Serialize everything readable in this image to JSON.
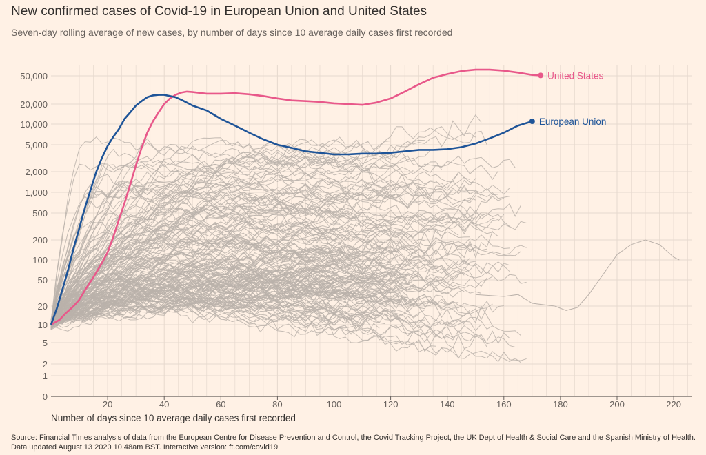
{
  "colors": {
    "background": "#fff1e5",
    "grid": "#e6d9ce",
    "baseline": "#66605c",
    "other_countries": "#bab1aa",
    "united_states": "#e8588a",
    "european_union": "#1e5498"
  },
  "chart_data": {
    "type": "line",
    "title": "New confirmed cases of Covid-19 in European Union and United States",
    "subtitle": "Seven-day rolling average of new cases, by number of days since 10 average daily cases first recorded",
    "xlabel": "Number of days since 10 average daily cases first recorded",
    "ylabel": "",
    "xlim": [
      0,
      230
    ],
    "y_scale": "log (0 shown at baseline)",
    "ylim": [
      0,
      80000
    ],
    "x_ticks": [
      20,
      40,
      60,
      80,
      100,
      120,
      140,
      160,
      180,
      200,
      220
    ],
    "y_ticks": [
      {
        "value": 50000,
        "label": "50,000"
      },
      {
        "value": 20000,
        "label": "20,000"
      },
      {
        "value": 10000,
        "label": "10,000"
      },
      {
        "value": 5000,
        "label": "5,000"
      },
      {
        "value": 2000,
        "label": "2,000"
      },
      {
        "value": 1000,
        "label": "1,000"
      },
      {
        "value": 500,
        "label": "500"
      },
      {
        "value": 200,
        "label": "200"
      },
      {
        "value": 100,
        "label": "100"
      },
      {
        "value": 50,
        "label": "50"
      },
      {
        "value": 20,
        "label": "20"
      },
      {
        "value": 10,
        "label": "10"
      },
      {
        "value": 5,
        "label": "5"
      },
      {
        "value": 2,
        "label": "2"
      },
      {
        "value": 1,
        "label": "1"
      },
      {
        "value": 0,
        "label": "0"
      }
    ],
    "series": [
      {
        "name": "United States",
        "highlight": true,
        "points": [
          [
            0,
            10
          ],
          [
            3,
            12
          ],
          [
            5,
            15
          ],
          [
            8,
            20
          ],
          [
            10,
            25
          ],
          [
            12,
            35
          ],
          [
            15,
            55
          ],
          [
            18,
            90
          ],
          [
            20,
            130
          ],
          [
            22,
            220
          ],
          [
            24,
            400
          ],
          [
            26,
            700
          ],
          [
            28,
            1300
          ],
          [
            30,
            2500
          ],
          [
            32,
            4500
          ],
          [
            34,
            7500
          ],
          [
            36,
            11000
          ],
          [
            38,
            15000
          ],
          [
            40,
            20000
          ],
          [
            42,
            24000
          ],
          [
            44,
            27000
          ],
          [
            46,
            29000
          ],
          [
            48,
            30000
          ],
          [
            50,
            29500
          ],
          [
            55,
            28000
          ],
          [
            60,
            28000
          ],
          [
            65,
            28500
          ],
          [
            70,
            27500
          ],
          [
            75,
            26000
          ],
          [
            80,
            24000
          ],
          [
            85,
            22500
          ],
          [
            90,
            22000
          ],
          [
            95,
            21500
          ],
          [
            100,
            20500
          ],
          [
            105,
            20000
          ],
          [
            110,
            19500
          ],
          [
            115,
            21000
          ],
          [
            120,
            24000
          ],
          [
            125,
            30000
          ],
          [
            130,
            38000
          ],
          [
            135,
            47000
          ],
          [
            140,
            54000
          ],
          [
            145,
            62000
          ],
          [
            150,
            66000
          ],
          [
            155,
            66000
          ],
          [
            160,
            63000
          ],
          [
            165,
            58000
          ],
          [
            170,
            52000
          ],
          [
            173,
            51000
          ]
        ]
      },
      {
        "name": "European Union",
        "highlight": true,
        "points": [
          [
            0,
            10
          ],
          [
            2,
            18
          ],
          [
            4,
            35
          ],
          [
            6,
            70
          ],
          [
            8,
            150
          ],
          [
            10,
            300
          ],
          [
            12,
            600
          ],
          [
            14,
            1100
          ],
          [
            16,
            2000
          ],
          [
            18,
            3200
          ],
          [
            20,
            4800
          ],
          [
            22,
            6500
          ],
          [
            24,
            8500
          ],
          [
            26,
            12000
          ],
          [
            28,
            15000
          ],
          [
            30,
            19000
          ],
          [
            32,
            22000
          ],
          [
            34,
            25000
          ],
          [
            36,
            26500
          ],
          [
            38,
            27000
          ],
          [
            40,
            27000
          ],
          [
            42,
            26000
          ],
          [
            44,
            25000
          ],
          [
            46,
            23000
          ],
          [
            48,
            21000
          ],
          [
            50,
            19000
          ],
          [
            55,
            16000
          ],
          [
            60,
            12000
          ],
          [
            65,
            9500
          ],
          [
            70,
            7500
          ],
          [
            75,
            6000
          ],
          [
            80,
            5000
          ],
          [
            85,
            4500
          ],
          [
            90,
            4000
          ],
          [
            95,
            3800
          ],
          [
            100,
            3600
          ],
          [
            105,
            3600
          ],
          [
            110,
            3700
          ],
          [
            115,
            3700
          ],
          [
            120,
            3800
          ],
          [
            125,
            4000
          ],
          [
            130,
            4200
          ],
          [
            135,
            4200
          ],
          [
            140,
            4300
          ],
          [
            145,
            4600
          ],
          [
            150,
            5200
          ],
          [
            155,
            6200
          ],
          [
            160,
            7500
          ],
          [
            165,
            9500
          ],
          [
            170,
            11000
          ]
        ]
      }
    ],
    "annotations": [
      {
        "text": "United States",
        "series": "United States"
      },
      {
        "text": "European Union",
        "series": "European Union"
      }
    ],
    "background_series_note": "About 200 other countries drawn as thin grey lines"
  },
  "source": {
    "line1": "Source: Financial Times analysis of data from the European Centre for Disease Prevention and Control, the Covid Tracking Project, the UK Dept of Health & Social Care and the Spanish Ministry of Health.",
    "line2": "Data updated August 13 2020 10.48am BST. Interactive version: ft.com/covid19"
  }
}
